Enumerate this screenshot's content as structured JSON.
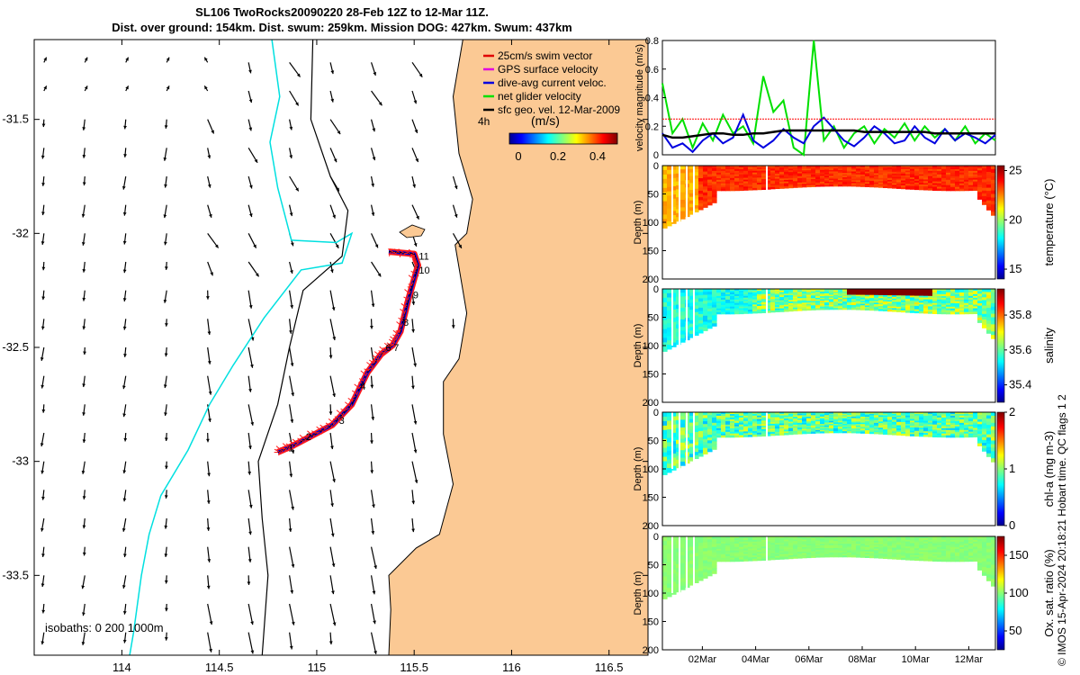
{
  "title": {
    "line1": "SL106 TwoRocks20090220 28-Feb 12Z to 12-Mar 11Z.",
    "line2": "Dist. over ground: 154km. Dist. swum: 259km. Mission DOG: 427km. Swum: 437km"
  },
  "legend": {
    "items": [
      {
        "label": "25cm/s swim vector",
        "color": "#e00000"
      },
      {
        "label": "GPS surface velocity",
        "color": "#e000e0"
      },
      {
        "label": "dive-avg current veloc.",
        "color": "#0000e0"
      },
      {
        "label": "net glider velocity",
        "color": "#00e000"
      },
      {
        "label": "sfc geo. vel. 12-Mar-2009",
        "color": "#000000"
      }
    ],
    "age_label": "4h",
    "colorbar_title": "(m/s)",
    "colorbar_ticks": [
      "0",
      "0.2",
      "0.4"
    ]
  },
  "footer": {
    "isobaths": "isobaths: 0   200  1000m",
    "credit": "© IMOS 15-Apr-2024 20:18:21 Hobart time. QC flags 1  2"
  },
  "colors": {
    "land": "#fbc994",
    "isobath_200": "#000000",
    "isobath_1000": "#00e0e0",
    "track_red": "#ff1a1a",
    "track_blue": "#0000e6",
    "track_black": "#000000"
  },
  "chart_data": [
    {
      "type": "map",
      "x_ticks": [
        "114",
        "114.5",
        "115",
        "115.5",
        "116",
        "116.5"
      ],
      "y_ticks": [
        "-31.5",
        "-32",
        "-32.5",
        "-33",
        "-33.5"
      ],
      "xlim": [
        113.55,
        116.7
      ],
      "ylim": [
        -33.85,
        -31.15
      ],
      "track": [
        [
          114.8,
          -32.96
        ],
        [
          114.88,
          -32.93
        ],
        [
          114.97,
          -32.89
        ],
        [
          115.08,
          -32.84
        ],
        [
          115.18,
          -32.75
        ],
        [
          115.26,
          -32.61
        ],
        [
          115.33,
          -32.53
        ],
        [
          115.39,
          -32.49
        ],
        [
          115.43,
          -32.43
        ],
        [
          115.47,
          -32.29
        ],
        [
          115.52,
          -32.14
        ],
        [
          115.5,
          -32.09
        ],
        [
          115.37,
          -32.08
        ]
      ],
      "track_labels": [
        {
          "text": "1",
          "lon": 114.84,
          "lat": -32.94
        },
        {
          "text": "2",
          "lon": 114.93,
          "lat": -32.89
        },
        {
          "text": "3",
          "lon": 115.1,
          "lat": -32.82
        },
        {
          "text": "4",
          "lon": 115.21,
          "lat": -32.67
        },
        {
          "text": "6",
          "lon": 115.34,
          "lat": -32.5
        },
        {
          "text": "7",
          "lon": 115.38,
          "lat": -32.5
        },
        {
          "text": "8",
          "lon": 115.43,
          "lat": -32.39
        },
        {
          "text": "9",
          "lon": 115.48,
          "lat": -32.27
        },
        {
          "text": "10",
          "lon": 115.51,
          "lat": -32.16
        },
        {
          "text": "11",
          "lon": 115.51,
          "lat": -32.1
        }
      ],
      "coast": [
        [
          115.75,
          -31.15
        ],
        [
          115.7,
          -31.4
        ],
        [
          115.73,
          -31.65
        ],
        [
          115.8,
          -31.85
        ],
        [
          115.77,
          -32.0
        ],
        [
          115.71,
          -32.05
        ],
        [
          115.77,
          -32.35
        ],
        [
          115.73,
          -32.55
        ],
        [
          115.65,
          -32.65
        ],
        [
          115.65,
          -32.88
        ],
        [
          115.7,
          -33.1
        ],
        [
          115.63,
          -33.32
        ],
        [
          115.51,
          -33.38
        ],
        [
          115.37,
          -33.5
        ],
        [
          115.38,
          -33.65
        ],
        [
          115.37,
          -33.85
        ]
      ],
      "isobath_200": [
        [
          114.98,
          -31.15
        ],
        [
          114.97,
          -31.5
        ],
        [
          115.07,
          -31.75
        ],
        [
          115.16,
          -31.9
        ],
        [
          115.13,
          -32.1
        ],
        [
          114.93,
          -32.25
        ],
        [
          114.86,
          -32.5
        ],
        [
          114.8,
          -32.75
        ],
        [
          114.7,
          -33.0
        ],
        [
          114.72,
          -33.25
        ],
        [
          114.75,
          -33.5
        ],
        [
          114.72,
          -33.85
        ]
      ],
      "isobath_1000": [
        [
          114.77,
          -31.15
        ],
        [
          114.81,
          -31.4
        ],
        [
          114.76,
          -31.6
        ],
        [
          114.8,
          -31.8
        ],
        [
          114.87,
          -32.03
        ],
        [
          115.1,
          -32.04
        ],
        [
          115.18,
          -32.0
        ],
        [
          115.13,
          -32.13
        ],
        [
          114.92,
          -32.16
        ],
        [
          114.73,
          -32.37
        ],
        [
          114.57,
          -32.58
        ],
        [
          114.45,
          -32.75
        ],
        [
          114.34,
          -32.95
        ],
        [
          114.2,
          -33.15
        ],
        [
          114.14,
          -33.32
        ],
        [
          114.1,
          -33.5
        ],
        [
          114.06,
          -33.75
        ],
        [
          114.04,
          -33.85
        ]
      ]
    },
    {
      "type": "line",
      "ylabel": "velocity magnitude (m/s)",
      "ylim": [
        0,
        0.8
      ],
      "y_ticks": [
        "0",
        "0.2",
        "0.4",
        "0.6",
        "0.8"
      ],
      "series": [
        {
          "color": "#00e000",
          "values": [
            0.5,
            0.15,
            0.25,
            0.05,
            0.22,
            0.1,
            0.28,
            0.15,
            0.2,
            0.08,
            0.55,
            0.3,
            0.38,
            0.05,
            0.0,
            0.8,
            0.1,
            0.2,
            0.05,
            0.15,
            0.2,
            0.08,
            0.18,
            0.12,
            0.22,
            0.1,
            0.2,
            0.12,
            0.18,
            0.1,
            0.2,
            0.08,
            0.15,
            0.1
          ]
        },
        {
          "color": "#0000e0",
          "values": [
            0.15,
            0.05,
            0.08,
            0.02,
            0.1,
            0.15,
            0.08,
            0.12,
            0.28,
            0.1,
            0.05,
            0.1,
            0.18,
            0.12,
            0.08,
            0.2,
            0.26,
            0.18,
            0.1,
            0.06,
            0.12,
            0.2,
            0.15,
            0.08,
            0.1,
            0.2,
            0.12,
            0.08,
            0.18,
            0.1,
            0.15,
            0.12,
            0.08,
            0.14
          ]
        },
        {
          "color": "#000000",
          "values": [
            0.14,
            0.12,
            0.12,
            0.13,
            0.14,
            0.15,
            0.15,
            0.14,
            0.14,
            0.15,
            0.15,
            0.16,
            0.17,
            0.17,
            0.17,
            0.17,
            0.17,
            0.17,
            0.17,
            0.17,
            0.16,
            0.16,
            0.16,
            0.16,
            0.16,
            0.16,
            0.16,
            0.15,
            0.15,
            0.15,
            0.15,
            0.15,
            0.15,
            0.15
          ]
        },
        {
          "color": "#ff0000",
          "values": [
            0.25,
            0.25,
            0.25,
            0.25,
            0.25,
            0.25,
            0.25,
            0.25,
            0.25,
            0.25,
            0.25,
            0.25,
            0.25,
            0.25,
            0.25,
            0.25,
            0.25,
            0.25,
            0.25,
            0.25,
            0.25,
            0.25,
            0.25,
            0.25,
            0.25,
            0.25,
            0.25,
            0.25,
            0.25,
            0.25,
            0.25,
            0.25,
            0.25,
            0.25
          ]
        }
      ]
    },
    {
      "type": "heatmap",
      "ylabel": "Depth (m)",
      "clabel": "temperature (°C)",
      "ylim": [
        200,
        0
      ],
      "y_ticks": [
        "0",
        "50",
        "100",
        "150",
        "200"
      ],
      "cticks": [
        "15",
        "20",
        "25"
      ],
      "crange": [
        14,
        25.5
      ],
      "base": 23.5,
      "variance": 1.0
    },
    {
      "type": "heatmap",
      "ylabel": "Depth (m)",
      "clabel": "salinity",
      "ylim": [
        200,
        0
      ],
      "y_ticks": [
        "0",
        "50",
        "100",
        "150",
        "200"
      ],
      "cticks": [
        "35.4",
        "35.6",
        "35.8"
      ],
      "crange": [
        35.3,
        35.95
      ],
      "base": 35.62,
      "variance": 0.1
    },
    {
      "type": "heatmap",
      "ylabel": "Depth (m)",
      "clabel": "chl-a (mg m-3)",
      "ylim": [
        200,
        0
      ],
      "y_ticks": [
        "0",
        "50",
        "100",
        "150",
        "200"
      ],
      "cticks": [
        "0",
        "1",
        "2"
      ],
      "crange": [
        0,
        2
      ],
      "base": 0.9,
      "variance": 0.3
    },
    {
      "type": "heatmap",
      "ylabel": "Depth (m)",
      "clabel": "Ox. sat. ratio (%)",
      "ylim": [
        200,
        0
      ],
      "y_ticks": [
        "0",
        "50",
        "100",
        "150",
        "200"
      ],
      "cticks": [
        "50",
        "100",
        "150"
      ],
      "crange": [
        25,
        175
      ],
      "base": 100,
      "variance": 3,
      "x_ticks": [
        "02Mar",
        "04Mar",
        "06Mar",
        "08Mar",
        "10Mar",
        "12Mar"
      ]
    }
  ]
}
